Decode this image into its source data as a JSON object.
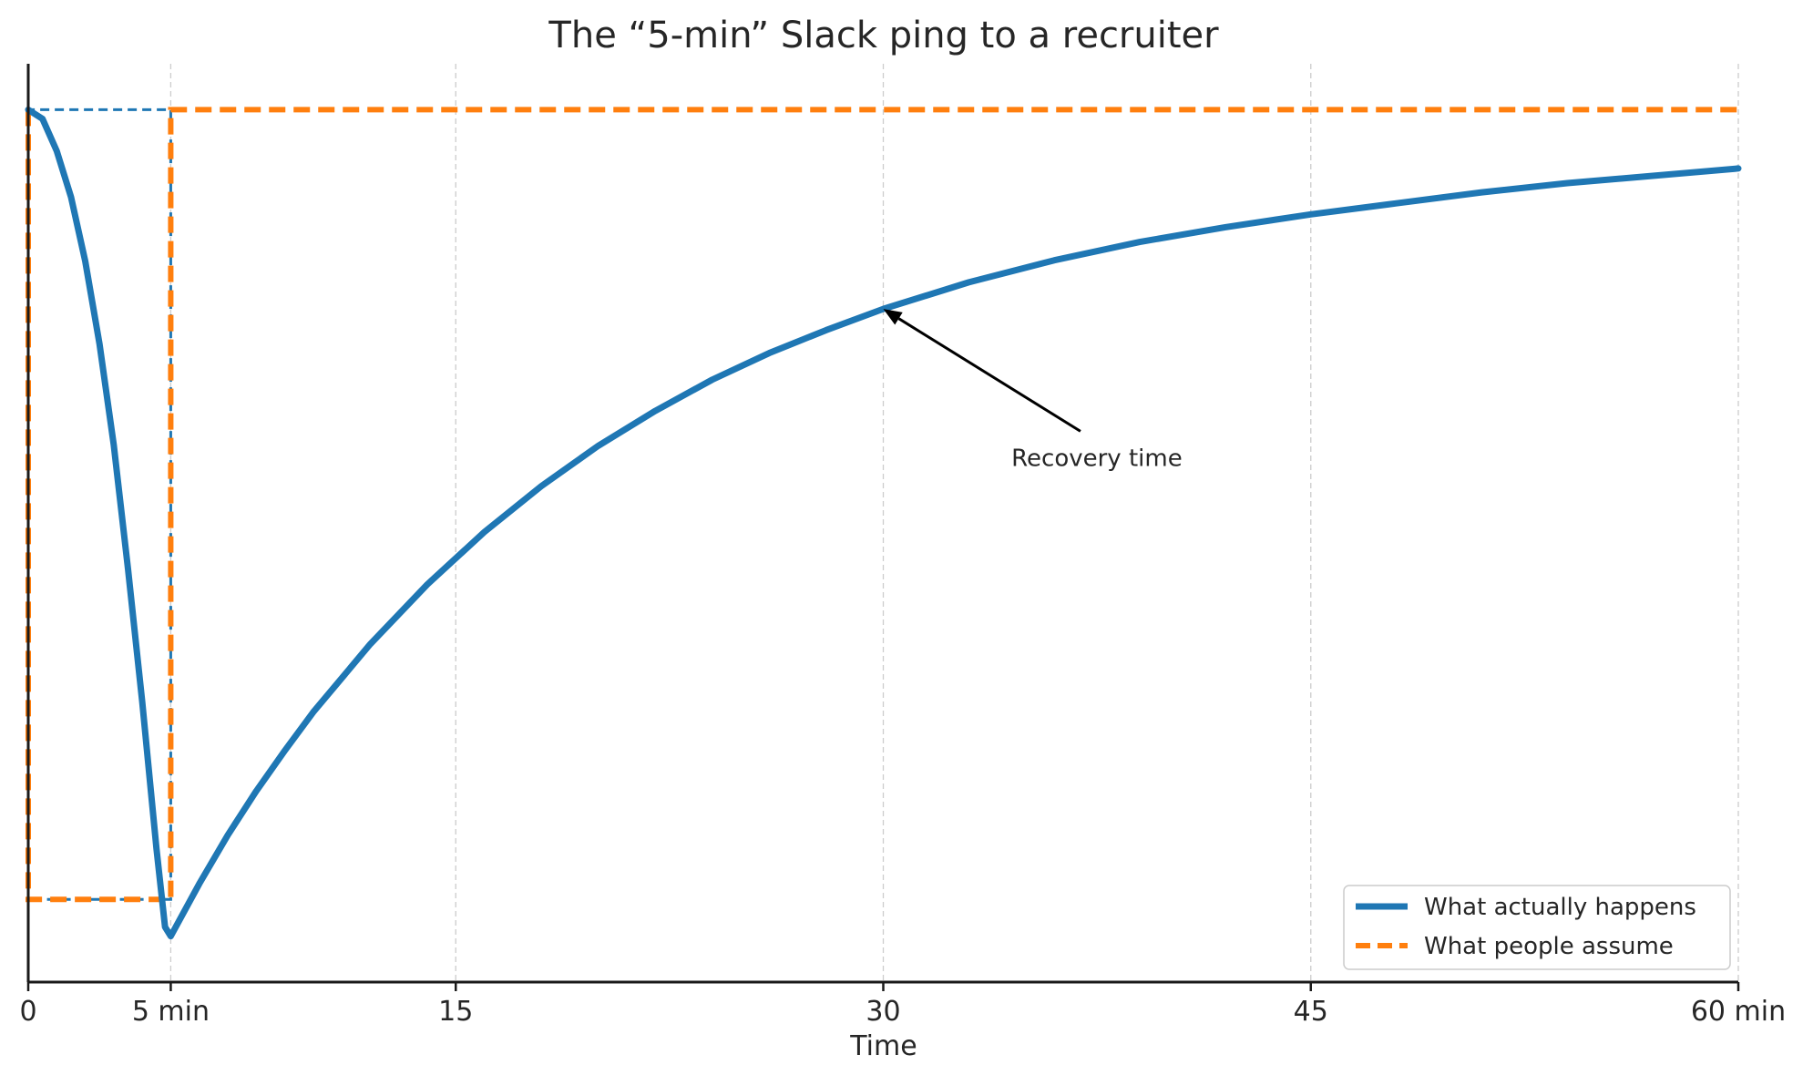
{
  "chart_data": {
    "type": "line",
    "title": "The “5-min” Slack ping to a recruiter",
    "xlabel": "Time",
    "ylabel": "",
    "xlim": [
      0,
      60
    ],
    "ylim": [
      0,
      1
    ],
    "grid_x": true,
    "grid_y": false,
    "legend_position": "bottom-right",
    "x_ticks": [
      {
        "value": 0,
        "label": "0"
      },
      {
        "value": 5,
        "label": "5 min"
      },
      {
        "value": 15,
        "label": "15"
      },
      {
        "value": 30,
        "label": "30"
      },
      {
        "value": 45,
        "label": "45"
      },
      {
        "value": 60,
        "label": "60 min"
      }
    ],
    "series": [
      {
        "name": "What actually happens",
        "style": "solid",
        "color": "#1f77b4",
        "x": [
          0,
          0.5,
          1,
          1.5,
          2,
          2.5,
          3,
          3.5,
          4,
          4.5,
          4.8,
          5,
          6,
          7,
          8,
          9,
          10,
          12,
          14,
          16,
          18,
          20,
          22,
          24,
          26,
          28,
          30,
          33,
          36,
          39,
          42,
          45,
          48,
          51,
          54,
          57,
          60
        ],
        "y": [
          0.95,
          0.94,
          0.905,
          0.855,
          0.785,
          0.695,
          0.585,
          0.45,
          0.305,
          0.145,
          0.06,
          0.05,
          0.107,
          0.16,
          0.208,
          0.252,
          0.294,
          0.368,
          0.433,
          0.49,
          0.54,
          0.584,
          0.622,
          0.656,
          0.685,
          0.71,
          0.733,
          0.762,
          0.786,
          0.806,
          0.822,
          0.836,
          0.848,
          0.86,
          0.87,
          0.878,
          0.886
        ]
      },
      {
        "name": "What people assume",
        "style": "dashed",
        "color": "#ff7f0e",
        "x": [
          0,
          0,
          5,
          5,
          60
        ],
        "y": [
          0.95,
          0.09,
          0.09,
          0.95,
          0.95
        ]
      }
    ],
    "reference_lines": {
      "color": "#1f77b4",
      "x": [
        0,
        0,
        5,
        5,
        0
      ],
      "y": [
        0.09,
        0.95,
        0.95,
        0.09,
        0.09
      ]
    },
    "annotation": {
      "text": "Recovery time",
      "point": {
        "x": 30,
        "y": 0.733
      },
      "text_at": {
        "x": 35,
        "y": 0.58
      }
    }
  }
}
